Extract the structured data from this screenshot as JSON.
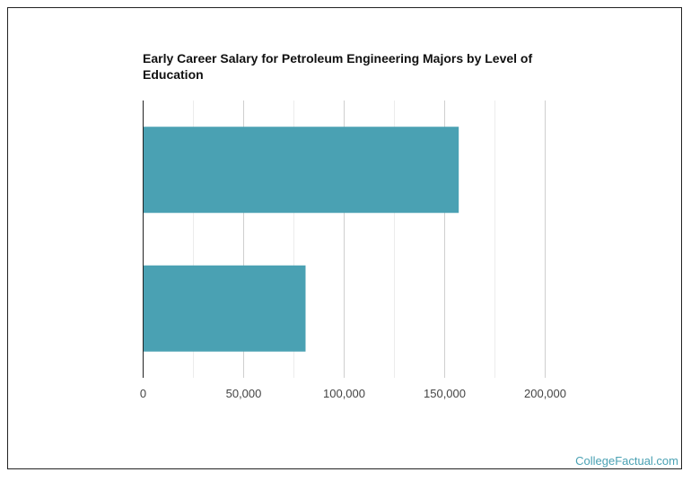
{
  "chart_data": {
    "type": "bar",
    "orientation": "horizontal",
    "title": "Early Career Salary for Petroleum Engineering Majors by Level of Education",
    "categories": [
      "",
      ""
    ],
    "values": [
      157000,
      80800
    ],
    "xlabel": "",
    "ylabel": "",
    "xlim": [
      0,
      200000
    ],
    "ticks": [
      0,
      50000,
      100000,
      150000,
      200000
    ],
    "tick_labels": [
      "0",
      "50,000",
      "100,000",
      "150,000",
      "200,000"
    ],
    "grid": true,
    "bar_color": "#4aa1b3"
  },
  "credit": "CollegeFactual.com"
}
